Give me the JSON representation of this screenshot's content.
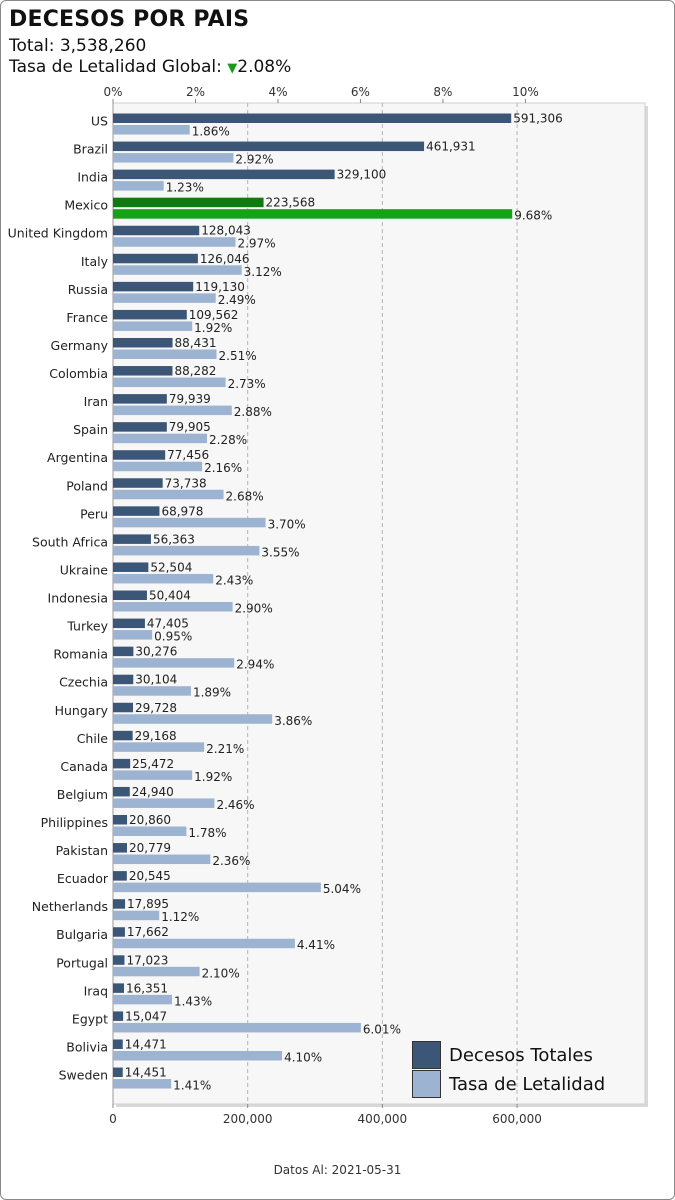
{
  "title": "DECESOS POR PAIS",
  "total_label": "Total: 3,538,260",
  "rate_label": "Tasa de Letalidad Global:",
  "rate_indicator": "▼",
  "rate_value": "2.08%",
  "footer": "Datos Al: 2021-05-31",
  "colors": {
    "deaths": "#3b5676",
    "rate": "#9db3d2",
    "highlight_deaths": "#0f7a0f",
    "highlight_rate": "#13a313",
    "indicator": "#1a9a1a"
  },
  "chart_data": {
    "type": "bar",
    "orientation": "horizontal",
    "highlight": "Mexico",
    "categories": [
      "US",
      "Brazil",
      "India",
      "Mexico",
      "United Kingdom",
      "Italy",
      "Russia",
      "France",
      "Germany",
      "Colombia",
      "Iran",
      "Spain",
      "Argentina",
      "Poland",
      "Peru",
      "South Africa",
      "Ukraine",
      "Indonesia",
      "Turkey",
      "Romania",
      "Czechia",
      "Hungary",
      "Chile",
      "Canada",
      "Belgium",
      "Philippines",
      "Pakistan",
      "Ecuador",
      "Netherlands",
      "Bulgaria",
      "Portugal",
      "Iraq",
      "Egypt",
      "Bolivia",
      "Sweden"
    ],
    "series": [
      {
        "name": "Decesos Totales",
        "axis": "bottom",
        "values": [
          591306,
          461931,
          329100,
          223568,
          128043,
          126046,
          119130,
          109562,
          88431,
          88282,
          79939,
          79905,
          77456,
          73738,
          68978,
          56363,
          52504,
          50404,
          47405,
          30276,
          30104,
          29728,
          29168,
          25472,
          24940,
          20860,
          20779,
          20545,
          17895,
          17662,
          17023,
          16351,
          15047,
          14471,
          14451
        ],
        "labels": [
          "591,306",
          "461,931",
          "329,100",
          "223,568",
          "128,043",
          "126,046",
          "119,130",
          "109,562",
          "88,431",
          "88,282",
          "79,939",
          "79,905",
          "77,456",
          "73,738",
          "68,978",
          "56,363",
          "52,504",
          "50,404",
          "47,405",
          "30,276",
          "30,104",
          "29,728",
          "29,168",
          "25,472",
          "24,940",
          "20,860",
          "20,779",
          "20,545",
          "17,895",
          "17,662",
          "17,023",
          "16,351",
          "15,047",
          "14,471",
          "14,451"
        ]
      },
      {
        "name": "Tasa de Letalidad",
        "axis": "top",
        "values": [
          1.86,
          2.92,
          1.23,
          9.68,
          2.97,
          3.12,
          2.49,
          1.92,
          2.51,
          2.73,
          2.88,
          2.28,
          2.16,
          2.68,
          3.7,
          3.55,
          2.43,
          2.9,
          0.95,
          2.94,
          1.89,
          3.86,
          2.21,
          1.92,
          2.46,
          1.78,
          2.36,
          5.04,
          1.12,
          4.41,
          2.1,
          1.43,
          6.01,
          4.1,
          1.41
        ],
        "labels": [
          "1.86%",
          "2.92%",
          "1.23%",
          "9.68%",
          "2.97%",
          "3.12%",
          "2.49%",
          "1.92%",
          "2.51%",
          "2.73%",
          "2.88%",
          "2.28%",
          "2.16%",
          "2.68%",
          "3.70%",
          "3.55%",
          "2.43%",
          "2.90%",
          "0.95%",
          "2.94%",
          "1.89%",
          "3.86%",
          "2.21%",
          "1.92%",
          "2.46%",
          "1.78%",
          "2.36%",
          "5.04%",
          "1.12%",
          "4.41%",
          "2.10%",
          "1.43%",
          "6.01%",
          "4.10%",
          "1.41%"
        ]
      }
    ],
    "x_bottom": {
      "ticks": [
        0,
        200000,
        400000,
        600000
      ],
      "tick_labels": [
        "0",
        "200,000",
        "400,000",
        "600,000"
      ],
      "max": 790000
    },
    "x_top": {
      "ticks": [
        0,
        2,
        4,
        6,
        8,
        10
      ],
      "tick_labels": [
        "0%",
        "2%",
        "4%",
        "6%",
        "8%",
        "10%"
      ],
      "max": 12.9
    },
    "grid": "vertical dashed",
    "legend_position": "bottom-right"
  }
}
